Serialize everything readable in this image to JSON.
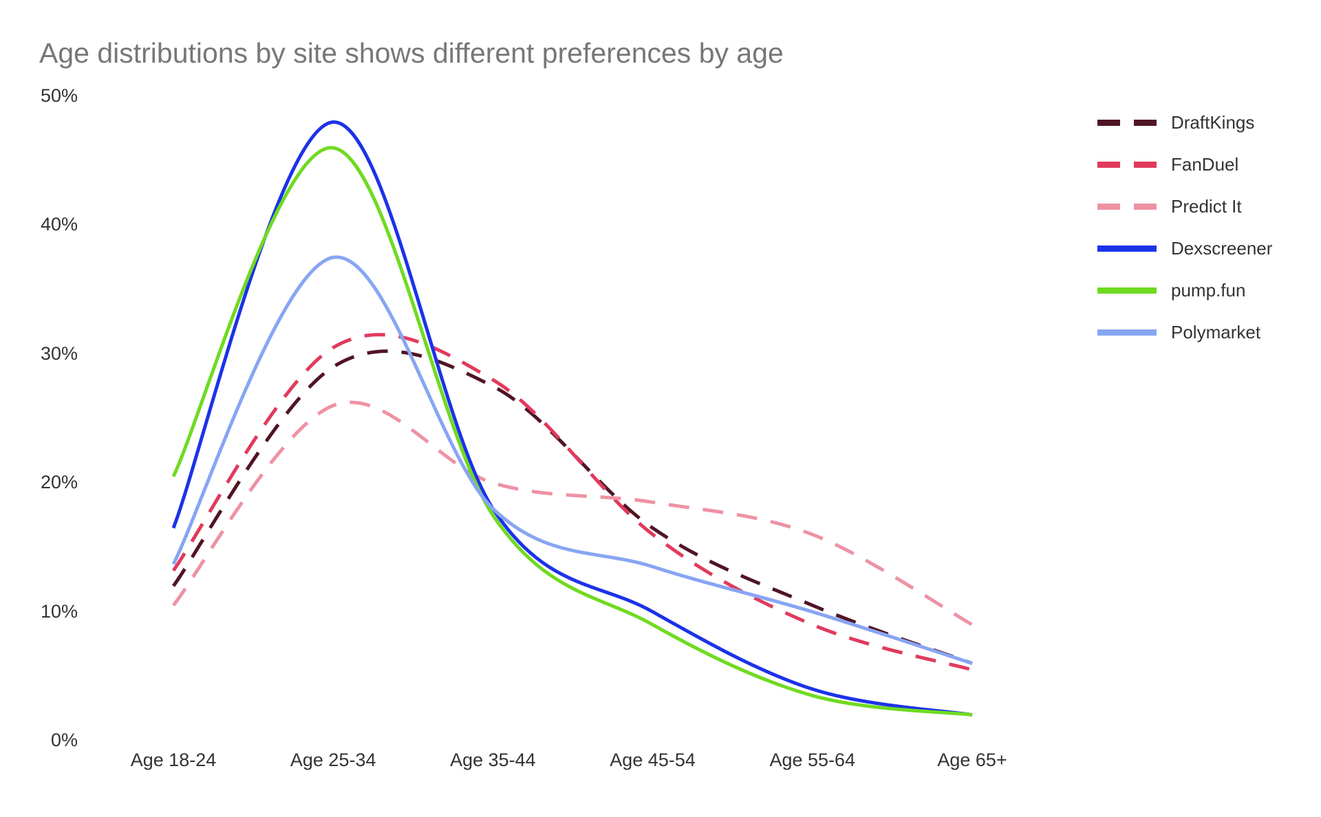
{
  "title": "Age distributions by site shows different preferences by age",
  "chart_data": {
    "type": "line",
    "smooth": true,
    "grid": false,
    "legend_position": "right",
    "categories": [
      "Age 18-24",
      "Age 25-34",
      "Age 35-44",
      "Age 45-54",
      "Age 55-64",
      "Age 65+"
    ],
    "series": [
      {
        "name": "DraftKings",
        "color": "#501524",
        "style": "dashed",
        "values": [
          12,
          29,
          27.5,
          16.5,
          10.5,
          6
        ]
      },
      {
        "name": "FanDuel",
        "color": "#e13a5c",
        "style": "dashed",
        "values": [
          13.2,
          30.5,
          28,
          16,
          9,
          5.5
        ]
      },
      {
        "name": "Predict It",
        "color": "#ee92a3",
        "style": "dashed",
        "values": [
          10.5,
          26,
          20,
          18.5,
          16,
          9
        ]
      },
      {
        "name": "Dexscreener",
        "color": "#1c32e8",
        "style": "solid",
        "values": [
          16.5,
          48,
          18,
          10,
          4,
          2
        ]
      },
      {
        "name": "pump.fun",
        "color": "#70da21",
        "style": "solid",
        "values": [
          20.5,
          46,
          17.5,
          9,
          3.5,
          2
        ]
      },
      {
        "name": "Polymarket",
        "color": "#88a5f3",
        "style": "solid",
        "values": [
          13.7,
          37.5,
          18,
          13.5,
          10,
          6
        ]
      }
    ],
    "y_ticks": [
      {
        "label": "0%",
        "value": 0
      },
      {
        "label": "10%",
        "value": 10
      },
      {
        "label": "20%",
        "value": 20
      },
      {
        "label": "30%",
        "value": 30
      },
      {
        "label": "40%",
        "value": 40
      },
      {
        "label": "50%",
        "value": 50
      }
    ],
    "ylim": [
      0,
      50
    ],
    "xlabel": "",
    "ylabel": ""
  },
  "colors": {
    "background": "#ffffff",
    "title_text": "#777777",
    "axis_text": "#333333"
  }
}
